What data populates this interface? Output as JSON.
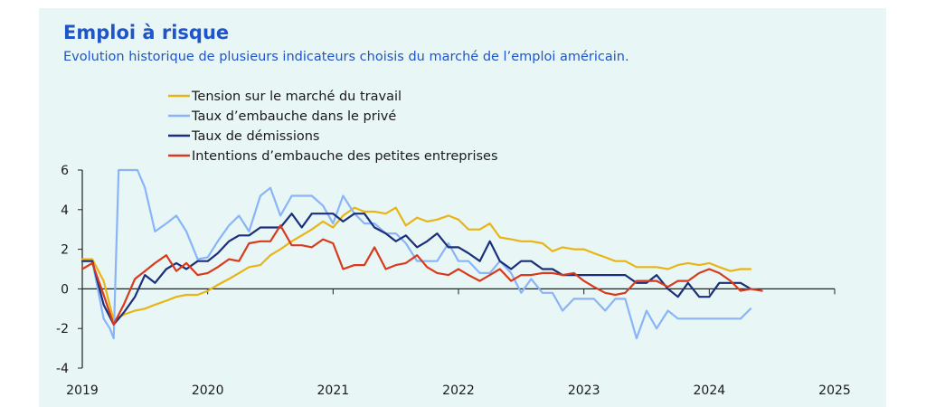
{
  "header": {
    "title": "Emploi à risque",
    "subtitle": "Evolution historique de plusieurs indicateurs choisis du marché de l’emploi américain."
  },
  "chart_data": {
    "type": "line",
    "title": "Emploi à risque",
    "subtitle": "Evolution historique de plusieurs indicateurs choisis du marché de l’emploi américain.",
    "xlabel": "",
    "ylabel": "",
    "xlim": [
      2019,
      2025
    ],
    "ylim": [
      -4,
      6
    ],
    "x_ticks": [
      "2019",
      "2020",
      "2021",
      "2022",
      "2023",
      "2024",
      "2025"
    ],
    "y_ticks": [
      "-4",
      "-2",
      "0",
      "2",
      "4",
      "6"
    ],
    "grid": false,
    "legend_position": "top-center",
    "series": [
      {
        "name": "Tension sur le marché du travail",
        "color": "#e8b416",
        "x": [
          2019.0,
          2019.08,
          2019.17,
          2019.25,
          2019.33,
          2019.42,
          2019.5,
          2019.58,
          2019.67,
          2019.75,
          2019.83,
          2019.92,
          2020.0,
          2020.08,
          2020.17,
          2020.25,
          2020.33,
          2020.42,
          2020.5,
          2020.58,
          2020.67,
          2020.75,
          2020.83,
          2020.92,
          2021.0,
          2021.08,
          2021.17,
          2021.25,
          2021.33,
          2021.42,
          2021.5,
          2021.58,
          2021.67,
          2021.75,
          2021.83,
          2021.92,
          2022.0,
          2022.08,
          2022.17,
          2022.25,
          2022.33,
          2022.42,
          2022.5,
          2022.58,
          2022.67,
          2022.75,
          2022.83,
          2022.92,
          2023.0,
          2023.08,
          2023.17,
          2023.25,
          2023.33,
          2023.42,
          2023.5,
          2023.58,
          2023.67,
          2023.75,
          2023.83,
          2023.92,
          2024.0,
          2024.08,
          2024.17,
          2024.25,
          2024.33
        ],
        "values": [
          1.5,
          1.5,
          0.4,
          -1.6,
          -1.3,
          -1.1,
          -1.0,
          -0.8,
          -0.6,
          -0.4,
          -0.3,
          -0.3,
          -0.1,
          0.2,
          0.5,
          0.8,
          1.1,
          1.2,
          1.7,
          2.0,
          2.4,
          2.7,
          3.0,
          3.4,
          3.1,
          3.7,
          4.1,
          3.9,
          3.9,
          3.8,
          4.1,
          3.2,
          3.6,
          3.4,
          3.5,
          3.7,
          3.5,
          3.0,
          3.0,
          3.3,
          2.6,
          2.5,
          2.4,
          2.4,
          2.3,
          1.9,
          2.1,
          2.0,
          2.0,
          1.8,
          1.6,
          1.4,
          1.4,
          1.1,
          1.1,
          1.1,
          1.0,
          1.2,
          1.3,
          1.2,
          1.3,
          1.1,
          0.9,
          1.0,
          1.0
        ]
      },
      {
        "name": "Taux d’embauche dans le privé",
        "color": "#8ab4f8",
        "x": [
          2019.0,
          2019.08,
          2019.17,
          2019.22,
          2019.25,
          2019.29,
          2019.33,
          2019.44,
          2019.5,
          2019.58,
          2019.67,
          2019.75,
          2019.83,
          2019.92,
          2020.0,
          2020.08,
          2020.17,
          2020.25,
          2020.33,
          2020.42,
          2020.5,
          2020.58,
          2020.67,
          2020.75,
          2020.83,
          2020.92,
          2021.0,
          2021.08,
          2021.17,
          2021.25,
          2021.33,
          2021.42,
          2021.5,
          2021.58,
          2021.67,
          2021.75,
          2021.83,
          2021.92,
          2022.0,
          2022.08,
          2022.17,
          2022.25,
          2022.33,
          2022.42,
          2022.5,
          2022.58,
          2022.67,
          2022.75,
          2022.83,
          2022.92,
          2023.0,
          2023.08,
          2023.17,
          2023.25,
          2023.33,
          2023.42,
          2023.5,
          2023.58,
          2023.67,
          2023.75,
          2023.83,
          2023.92,
          2024.0,
          2024.08,
          2024.17,
          2024.25,
          2024.33
        ],
        "values": [
          1.4,
          1.4,
          -1.5,
          -2.0,
          -2.5,
          6.0,
          6.0,
          6.0,
          5.1,
          2.9,
          3.3,
          3.7,
          2.9,
          1.5,
          1.6,
          2.4,
          3.2,
          3.7,
          2.9,
          4.7,
          5.1,
          3.7,
          4.7,
          4.7,
          4.7,
          4.2,
          3.3,
          4.7,
          3.8,
          3.3,
          3.3,
          2.8,
          2.8,
          2.3,
          1.4,
          1.4,
          1.4,
          2.3,
          1.4,
          1.4,
          0.8,
          0.8,
          1.4,
          0.8,
          -0.2,
          0.5,
          -0.2,
          -0.2,
          -1.1,
          -0.5,
          -0.5,
          -0.5,
          -1.1,
          -0.5,
          -0.5,
          -2.5,
          -1.1,
          -2.0,
          -1.1,
          -1.5,
          -1.5,
          -1.5,
          -1.5,
          -1.5,
          -1.5,
          -1.5,
          -1.0
        ]
      },
      {
        "name": "Taux de démissions",
        "color": "#1b2f7a",
        "x": [
          2019.0,
          2019.08,
          2019.17,
          2019.25,
          2019.33,
          2019.42,
          2019.5,
          2019.58,
          2019.67,
          2019.75,
          2019.83,
          2019.92,
          2020.0,
          2020.08,
          2020.17,
          2020.25,
          2020.33,
          2020.42,
          2020.5,
          2020.58,
          2020.67,
          2020.75,
          2020.83,
          2020.92,
          2021.0,
          2021.08,
          2021.17,
          2021.25,
          2021.33,
          2021.42,
          2021.5,
          2021.58,
          2021.67,
          2021.75,
          2021.83,
          2021.92,
          2022.0,
          2022.08,
          2022.17,
          2022.25,
          2022.33,
          2022.42,
          2022.5,
          2022.58,
          2022.67,
          2022.75,
          2022.83,
          2022.92,
          2023.0,
          2023.08,
          2023.17,
          2023.25,
          2023.33,
          2023.42,
          2023.5,
          2023.58,
          2023.67,
          2023.75,
          2023.83,
          2023.92,
          2024.0,
          2024.08,
          2024.17,
          2024.25,
          2024.33
        ],
        "values": [
          1.4,
          1.4,
          -0.8,
          -1.8,
          -1.2,
          -0.4,
          0.7,
          0.3,
          1.0,
          1.3,
          1.0,
          1.4,
          1.4,
          1.8,
          2.4,
          2.7,
          2.7,
          3.1,
          3.1,
          3.1,
          3.8,
          3.1,
          3.8,
          3.8,
          3.8,
          3.4,
          3.8,
          3.8,
          3.1,
          2.8,
          2.4,
          2.7,
          2.1,
          2.4,
          2.8,
          2.1,
          2.1,
          1.8,
          1.4,
          2.4,
          1.4,
          1.0,
          1.4,
          1.4,
          1.0,
          1.0,
          0.7,
          0.7,
          0.7,
          0.7,
          0.7,
          0.7,
          0.7,
          0.3,
          0.3,
          0.7,
          0.0,
          -0.4,
          0.3,
          -0.4,
          -0.4,
          0.3,
          0.3,
          0.3,
          0.0
        ]
      },
      {
        "name": "Intentions d’embauche des petites entreprises",
        "color": "#d9391c",
        "x": [
          2019.0,
          2019.08,
          2019.17,
          2019.25,
          2019.33,
          2019.42,
          2019.5,
          2019.58,
          2019.67,
          2019.75,
          2019.83,
          2019.92,
          2020.0,
          2020.08,
          2020.17,
          2020.25,
          2020.33,
          2020.42,
          2020.5,
          2020.58,
          2020.67,
          2020.75,
          2020.83,
          2020.92,
          2021.0,
          2021.08,
          2021.17,
          2021.25,
          2021.33,
          2021.42,
          2021.5,
          2021.58,
          2021.67,
          2021.75,
          2021.83,
          2021.92,
          2022.0,
          2022.08,
          2022.17,
          2022.25,
          2022.33,
          2022.42,
          2022.5,
          2022.58,
          2022.67,
          2022.75,
          2022.83,
          2022.92,
          2023.0,
          2023.08,
          2023.17,
          2023.25,
          2023.33,
          2023.42,
          2023.5,
          2023.58,
          2023.67,
          2023.75,
          2023.83,
          2023.92,
          2024.0,
          2024.08,
          2024.17,
          2024.25,
          2024.33,
          2024.42
        ],
        "values": [
          1.0,
          1.3,
          -0.3,
          -1.8,
          -0.8,
          0.5,
          0.9,
          1.3,
          1.7,
          0.9,
          1.3,
          0.7,
          0.8,
          1.1,
          1.5,
          1.4,
          2.3,
          2.4,
          2.4,
          3.2,
          2.2,
          2.2,
          2.1,
          2.5,
          2.3,
          1.0,
          1.2,
          1.2,
          2.1,
          1.0,
          1.2,
          1.3,
          1.7,
          1.1,
          0.8,
          0.7,
          1.0,
          0.7,
          0.4,
          0.7,
          1.0,
          0.4,
          0.7,
          0.7,
          0.8,
          0.8,
          0.7,
          0.8,
          0.4,
          0.1,
          -0.2,
          -0.3,
          -0.2,
          0.4,
          0.4,
          0.4,
          0.1,
          0.4,
          0.4,
          0.8,
          1.0,
          0.8,
          0.4,
          -0.1,
          0.0,
          -0.1
        ]
      }
    ]
  }
}
